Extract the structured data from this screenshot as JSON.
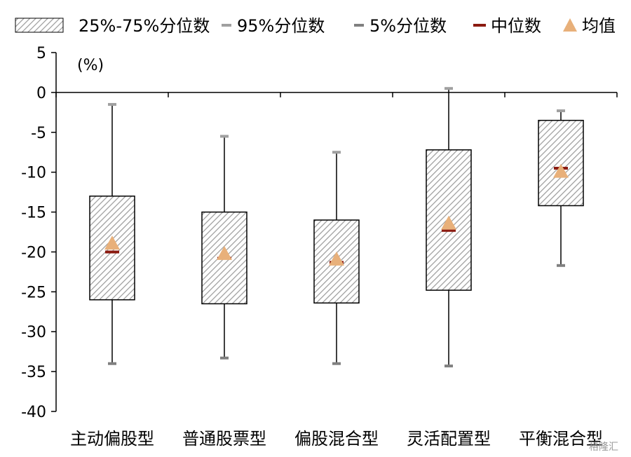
{
  "chart_data": {
    "type": "box",
    "unit_label": "(%)",
    "ylim": [
      -40,
      5
    ],
    "yticks": [
      5,
      0,
      -5,
      -10,
      -15,
      -20,
      -25,
      -30,
      -35,
      -40
    ],
    "categories": [
      "主动偏股型",
      "普通股票型",
      "偏股混合型",
      "灵活配置型",
      "平衡混合型"
    ],
    "series": [
      {
        "name": "95%分位数",
        "values": [
          -1.5,
          -5.5,
          -7.5,
          0.5,
          -2.3
        ]
      },
      {
        "name": "25%-75%分位数",
        "q75": [
          -13.0,
          -15.0,
          -16.0,
          -7.2,
          -3.5
        ],
        "q25": [
          -26.0,
          -26.5,
          -26.4,
          -24.8,
          -14.2
        ]
      },
      {
        "name": "5%分位数",
        "values": [
          -34.0,
          -33.3,
          -34.0,
          -34.3,
          -21.7
        ]
      },
      {
        "name": "中位数",
        "values": [
          -20.0,
          -20.8,
          -21.3,
          -17.3,
          -9.5
        ]
      },
      {
        "name": "均值",
        "values": [
          -19.0,
          -20.3,
          -21.0,
          -16.5,
          -10.0
        ]
      }
    ],
    "colors": {
      "box_stroke": "#000000",
      "box_hatch": "#9a9a9a",
      "whisker": "#000000",
      "p95_cap": "#a0a0a0",
      "p5_cap": "#808080",
      "median": "#8b1a10",
      "mean": "#e8b07a"
    },
    "legend": {
      "position": "top",
      "items": [
        {
          "label": "25%-75%分位数",
          "marker": "hatched-box"
        },
        {
          "label": "95%分位数",
          "marker": "light-gray-dash"
        },
        {
          "label": "5%分位数",
          "marker": "gray-dash"
        },
        {
          "label": "中位数",
          "marker": "red-dash"
        },
        {
          "label": "均值",
          "marker": "triangle"
        }
      ]
    },
    "grid": false
  },
  "watermark": "格隆汇"
}
